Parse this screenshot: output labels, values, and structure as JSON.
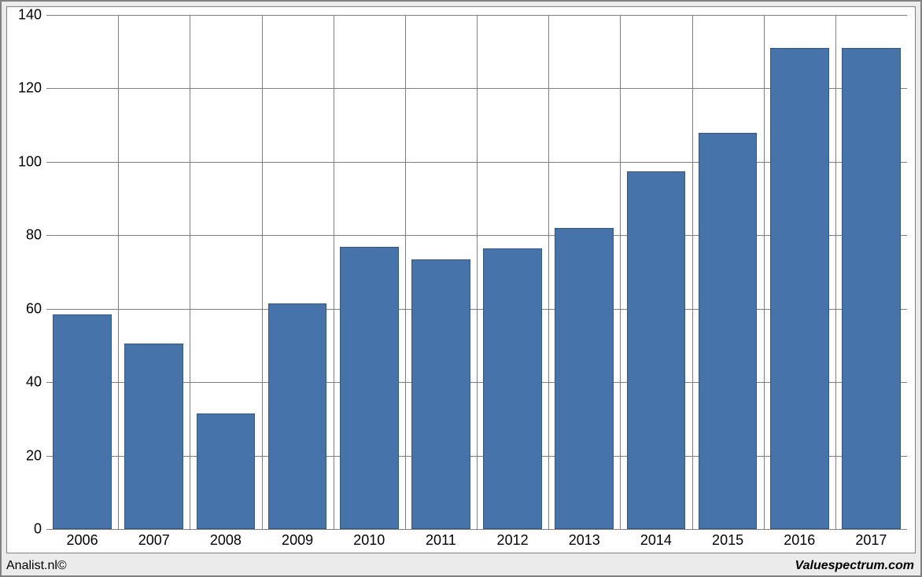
{
  "chart": {
    "type": "bar",
    "categories": [
      "2006",
      "2007",
      "2008",
      "2009",
      "2010",
      "2011",
      "2012",
      "2013",
      "2014",
      "2015",
      "2016",
      "2017"
    ],
    "values": [
      58.5,
      50.5,
      31.5,
      61.5,
      76.8,
      73.5,
      76.5,
      82,
      97.5,
      108,
      131,
      131
    ],
    "ylim": [
      0,
      140
    ],
    "ytick_step": 20,
    "bar_color": "#4673a9",
    "bar_border_color": "#35567f",
    "grid_color": "#808080",
    "background_color": "#ffffff",
    "frame_background": "#ebebeb",
    "frame_border": "#808080",
    "bar_width_ratio": 0.82,
    "axis_fontsize": 18,
    "footer_fontsize": 16
  },
  "footer": {
    "left": "Analist.nl©",
    "right": "Valuespectrum.com"
  }
}
